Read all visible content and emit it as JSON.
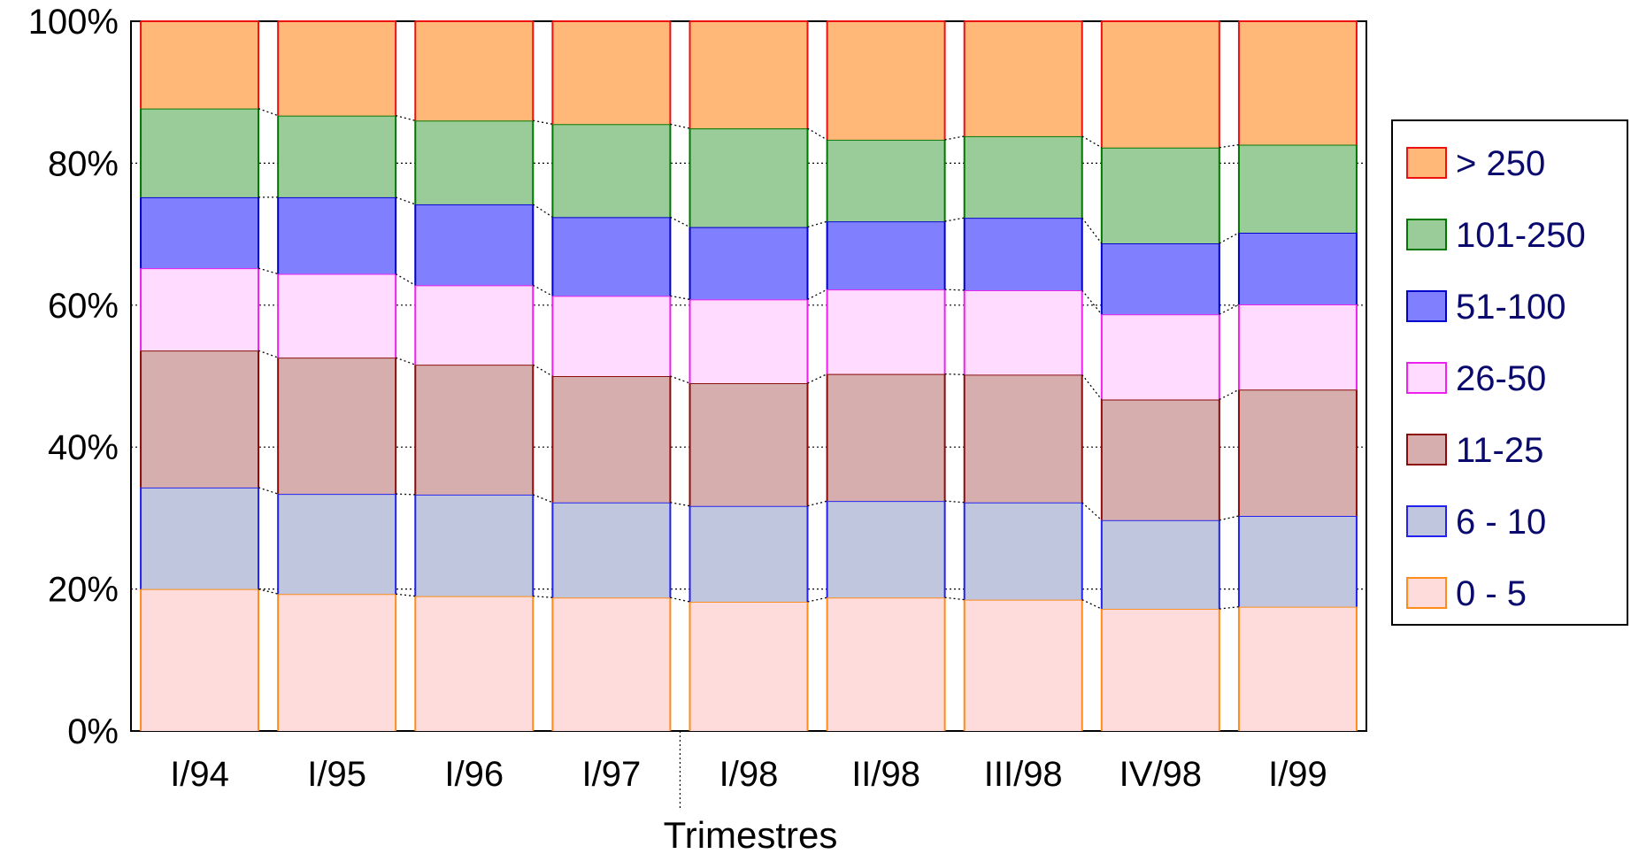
{
  "chart_data": {
    "type": "bar",
    "stacked": true,
    "normalized": true,
    "xlabel": "Trimestres",
    "ylabel": "",
    "ylim": [
      0,
      100
    ],
    "yticks": [
      "0%",
      "20%",
      "40%",
      "60%",
      "80%",
      "100%"
    ],
    "categories": [
      "I/94",
      "I/95",
      "I/96",
      "I/97",
      "I/98",
      "II/98",
      "III/98",
      "IV/98",
      "I/99"
    ],
    "series": [
      {
        "name": "0 - 5",
        "fill": "#ffdcdc",
        "stroke": "#ff8c1a",
        "values": [
          20.0,
          19.3,
          19.0,
          18.8,
          18.2,
          18.8,
          18.5,
          17.2,
          17.5
        ]
      },
      {
        "name": "6 - 10",
        "fill": "#bfc6de",
        "stroke": "#2222ee",
        "values": [
          14.3,
          14.1,
          14.3,
          13.4,
          13.5,
          13.6,
          13.7,
          12.5,
          12.8
        ]
      },
      {
        "name": "11-25",
        "fill": "#d6aeae",
        "stroke": "#8b0a0a",
        "values": [
          19.3,
          19.2,
          18.3,
          17.8,
          17.3,
          17.9,
          18.0,
          17.0,
          17.8
        ]
      },
      {
        "name": "26-50",
        "fill": "#ffdcff",
        "stroke": "#ee22ee",
        "values": [
          11.6,
          11.8,
          11.2,
          11.3,
          11.8,
          11.9,
          11.9,
          12.0,
          12.0
        ]
      },
      {
        "name": "51-100",
        "fill": "#8080ff",
        "stroke": "#0000cc",
        "values": [
          10.0,
          10.8,
          11.4,
          11.1,
          10.2,
          9.6,
          10.2,
          10.0,
          10.1
        ]
      },
      {
        "name": "101-250",
        "fill": "#99cc99",
        "stroke": "#007700",
        "values": [
          12.5,
          11.5,
          11.8,
          13.1,
          13.9,
          11.5,
          11.5,
          13.5,
          12.4
        ]
      },
      {
        "name": "> 250",
        "fill": "#ffb877",
        "stroke": "#ee1111",
        "values": [
          12.3,
          13.3,
          14.0,
          14.5,
          15.1,
          16.7,
          16.2,
          17.8,
          17.4
        ]
      }
    ],
    "legend_position": "right",
    "separator_after_category": 3,
    "grid": "dotted horizontal"
  }
}
